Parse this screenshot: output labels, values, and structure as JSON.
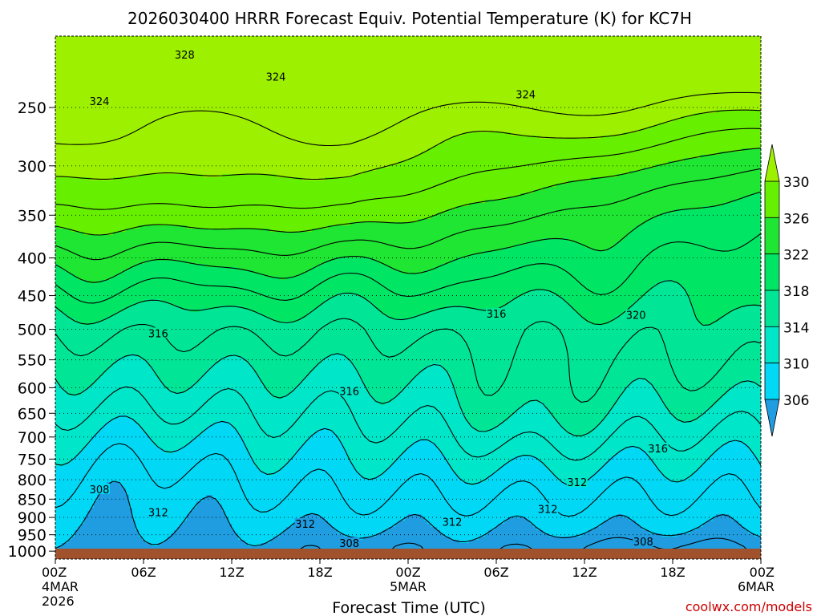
{
  "chart_data": {
    "type": "contour",
    "title": "2026030400 HRRR Forecast Equiv. Potential Temperature (K) for KC7H",
    "xlabel": "Forecast Time (UTC)",
    "ylabel": "",
    "units": "K",
    "pressure_scale": "log",
    "y_range_hpa": [
      1025,
      200
    ],
    "x_range_hours": [
      0,
      48
    ],
    "y_ticks": [
      250,
      300,
      350,
      400,
      450,
      500,
      550,
      600,
      650,
      700,
      750,
      800,
      850,
      900,
      950,
      1000
    ],
    "x_ticks": [
      {
        "h": 0,
        "label": "00Z",
        "date": "4MAR",
        "year": "2026"
      },
      {
        "h": 6,
        "label": "06Z",
        "date": "",
        "year": ""
      },
      {
        "h": 12,
        "label": "12Z",
        "date": "",
        "year": ""
      },
      {
        "h": 18,
        "label": "18Z",
        "date": "",
        "year": ""
      },
      {
        "h": 24,
        "label": "00Z",
        "date": "5MAR",
        "year": ""
      },
      {
        "h": 30,
        "label": "06Z",
        "date": "",
        "year": ""
      },
      {
        "h": 36,
        "label": "12Z",
        "date": "",
        "year": ""
      },
      {
        "h": 42,
        "label": "18Z",
        "date": "",
        "year": ""
      },
      {
        "h": 48,
        "label": "00Z",
        "date": "6MAR",
        "year": ""
      }
    ],
    "colorbar": {
      "levels": [
        306,
        310,
        314,
        318,
        322,
        326,
        330
      ],
      "colors": [
        "#1f9de0",
        "#00d8f6",
        "#00e6c8",
        "#00e696",
        "#00e664",
        "#1ee632",
        "#66f000",
        "#9cf000"
      ]
    },
    "contour_labels": [
      {
        "value": "328",
        "h": 8.8,
        "p": 212
      },
      {
        "value": "324",
        "h": 3.0,
        "p": 245
      },
      {
        "value": "324",
        "h": 15.0,
        "p": 227
      },
      {
        "value": "324",
        "h": 32.0,
        "p": 240
      },
      {
        "value": "320",
        "h": 39.5,
        "p": 478
      },
      {
        "value": "316",
        "h": 7.0,
        "p": 506
      },
      {
        "value": "316",
        "h": 20.0,
        "p": 606
      },
      {
        "value": "316",
        "h": 30.0,
        "p": 476
      },
      {
        "value": "316",
        "h": 41.0,
        "p": 725
      },
      {
        "value": "312",
        "h": 7.0,
        "p": 885
      },
      {
        "value": "312",
        "h": 17.0,
        "p": 918
      },
      {
        "value": "312",
        "h": 27.0,
        "p": 912
      },
      {
        "value": "312",
        "h": 33.5,
        "p": 876
      },
      {
        "value": "312",
        "h": 35.5,
        "p": 806
      },
      {
        "value": "308",
        "h": 3.0,
        "p": 824
      },
      {
        "value": "308",
        "h": 20.0,
        "p": 975
      },
      {
        "value": "308",
        "h": 40.0,
        "p": 970
      }
    ]
  },
  "footer": {
    "credit": "coolwx.com/models"
  },
  "colors": {
    "ground": "#a0522d",
    "credit": "#cc0000"
  }
}
